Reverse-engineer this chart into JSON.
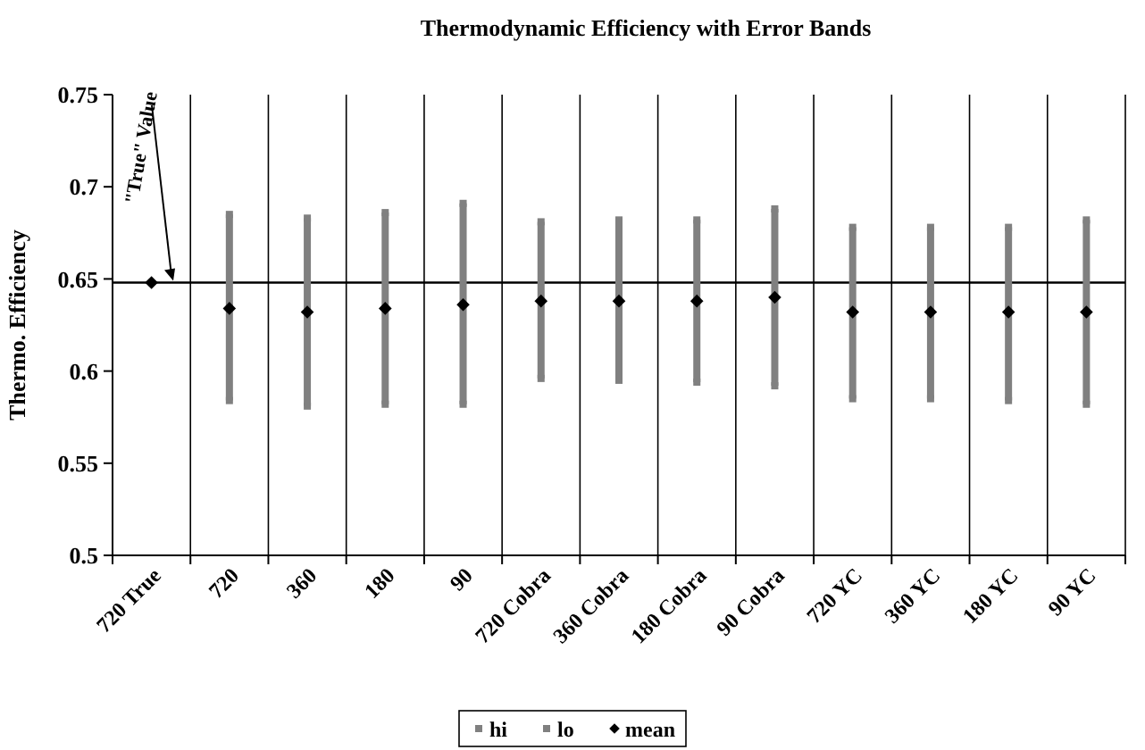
{
  "chart_data": {
    "type": "scatter",
    "title": "Thermodynamic Efficiency with Error Bands",
    "ylabel": "Thermo. Efficiency",
    "categories": [
      "720 True",
      "720",
      "360",
      "180",
      "90",
      "720 Cobra",
      "360 Cobra",
      "180 Cobra",
      "90 Cobra",
      "720 YC",
      "360 YC",
      "180 YC",
      "90 YC"
    ],
    "series": [
      {
        "name": "hi",
        "marker": "square",
        "color": "#808080",
        "values": [
          null,
          0.685,
          0.683,
          0.686,
          0.691,
          0.681,
          0.682,
          0.682,
          0.688,
          0.678,
          0.678,
          0.678,
          0.682
        ]
      },
      {
        "name": "lo",
        "marker": "square",
        "color": "#808080",
        "values": [
          null,
          0.584,
          0.581,
          0.582,
          0.582,
          0.596,
          0.595,
          0.594,
          0.592,
          0.585,
          0.585,
          0.584,
          0.582
        ]
      },
      {
        "name": "mean",
        "color": "#000000",
        "marker": "diamond",
        "values": [
          0.648,
          0.634,
          0.632,
          0.634,
          0.636,
          0.638,
          0.638,
          0.638,
          0.64,
          0.632,
          0.632,
          0.632,
          0.632
        ]
      }
    ],
    "ylim": [
      0.5,
      0.75
    ],
    "yticks": [
      0.5,
      0.55,
      0.6,
      0.65,
      0.7,
      0.75
    ],
    "grid": "x",
    "legend": "bottom",
    "ref_lines": [
      {
        "axis": "y",
        "value": 0.648,
        "label": "\"True\" Value",
        "color": "#000000"
      }
    ]
  }
}
